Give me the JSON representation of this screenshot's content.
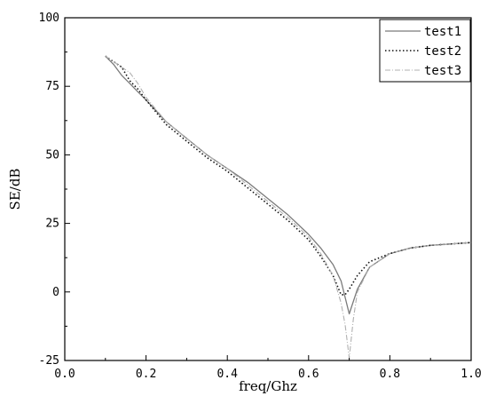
{
  "chart_data": {
    "type": "line",
    "xlabel": "freq/Ghz",
    "ylabel": "SE/dB",
    "xlim": [
      0.0,
      1.0
    ],
    "ylim": [
      -25,
      100
    ],
    "xticks": [
      0.0,
      0.2,
      0.4,
      0.6,
      0.8,
      1.0
    ],
    "xtick_labels": [
      "0.0",
      "0.2",
      "0.4",
      "0.6",
      "0.8",
      "1.0"
    ],
    "yticks": [
      -25,
      0,
      25,
      50,
      75,
      100
    ],
    "ytick_labels": [
      "-25",
      "0",
      "25",
      "50",
      "75",
      "100"
    ],
    "grid": false,
    "legend_position": "top-right",
    "series": [
      {
        "name": "test1",
        "color": "#7a7a7a",
        "style": "solid",
        "x": [
          0.1,
          0.12,
          0.14,
          0.16,
          0.18,
          0.2,
          0.25,
          0.3,
          0.35,
          0.4,
          0.45,
          0.5,
          0.55,
          0.6,
          0.63,
          0.66,
          0.68,
          0.69,
          0.7,
          0.72,
          0.75,
          0.8,
          0.85,
          0.9,
          1.0
        ],
        "y": [
          86,
          83,
          79,
          76,
          73,
          70,
          62,
          56,
          50,
          45,
          40,
          34,
          28,
          21,
          16,
          10,
          4,
          -2,
          -8,
          1,
          9,
          14,
          16,
          17,
          18
        ]
      },
      {
        "name": "test2",
        "color": "#111111",
        "style": "dotted",
        "x": [
          0.1,
          0.12,
          0.14,
          0.16,
          0.18,
          0.2,
          0.25,
          0.3,
          0.35,
          0.4,
          0.45,
          0.5,
          0.55,
          0.6,
          0.63,
          0.66,
          0.68,
          0.69,
          0.7,
          0.72,
          0.75,
          0.8,
          0.85,
          0.9,
          1.0
        ],
        "y": [
          86,
          84,
          82,
          77,
          74,
          70,
          61,
          55,
          49,
          44,
          38,
          32,
          26,
          19,
          13,
          6,
          -1,
          -1,
          1,
          6,
          11,
          14,
          16,
          17,
          18
        ]
      },
      {
        "name": "test3",
        "color": "#b0b0b0",
        "style": "dashdot",
        "x": [
          0.1,
          0.12,
          0.14,
          0.16,
          0.18,
          0.2,
          0.25,
          0.3,
          0.35,
          0.4,
          0.45,
          0.5,
          0.55,
          0.6,
          0.63,
          0.66,
          0.68,
          0.69,
          0.7,
          0.71,
          0.72,
          0.75,
          0.8,
          0.85,
          0.9,
          1.0
        ],
        "y": [
          86,
          84,
          82,
          80,
          76,
          71,
          62,
          56,
          50,
          45,
          39,
          33,
          27,
          20,
          14,
          6,
          -4,
          -12,
          -24,
          -10,
          0,
          9,
          14,
          16,
          17,
          18
        ]
      }
    ]
  }
}
